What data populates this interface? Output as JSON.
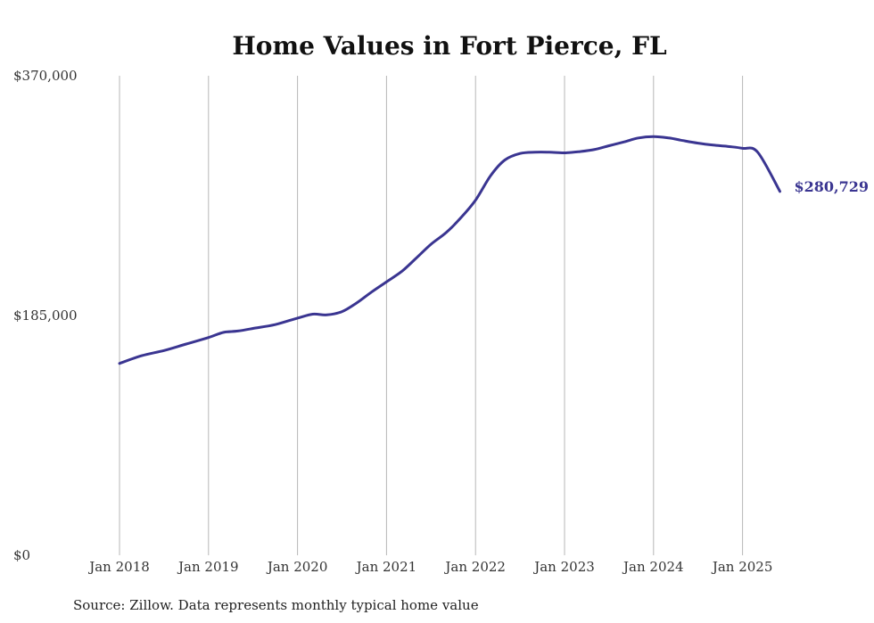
{
  "chart_data": {
    "type": "line",
    "title": "Home Values in Fort Pierce, FL",
    "xlabel": "",
    "ylabel": "",
    "ylim": [
      0,
      370000
    ],
    "y_ticks": [
      "$0",
      "$185,000",
      "$370,000"
    ],
    "y_tick_values": [
      0,
      185000,
      370000
    ],
    "x_ticks": [
      "Jan 2018",
      "Jan 2019",
      "Jan 2020",
      "Jan 2021",
      "Jan 2022",
      "Jan 2023",
      "Jan 2024",
      "Jan 2025"
    ],
    "x_tick_values": [
      2018,
      2019,
      2020,
      2021,
      2022,
      2023,
      2024,
      2025
    ],
    "xlim": [
      2018,
      2025.42
    ],
    "grid": "vertical",
    "line_color": "#3a3591",
    "end_label": "$280,729",
    "series": [
      {
        "x": [
          2018.0,
          2018.25,
          2018.5,
          2018.75,
          2019.0,
          2019.17,
          2019.33,
          2019.5,
          2019.75,
          2020.0,
          2020.17,
          2020.33,
          2020.5,
          2020.67,
          2020.83,
          2021.0,
          2021.17,
          2021.33,
          2021.5,
          2021.67,
          2021.83,
          2022.0,
          2022.17,
          2022.33,
          2022.5,
          2022.67,
          2022.83,
          2023.0,
          2023.17,
          2023.33,
          2023.5,
          2023.67,
          2023.83,
          2024.0,
          2024.17,
          2024.33,
          2024.5,
          2024.67,
          2024.83,
          2025.0,
          2025.17,
          2025.42
        ],
        "values": [
          148000,
          154000,
          158000,
          163000,
          168000,
          172000,
          173000,
          175000,
          178000,
          183000,
          186000,
          185500,
          188000,
          195000,
          203000,
          211000,
          219000,
          229000,
          240000,
          249000,
          260000,
          274000,
          293000,
          305000,
          310000,
          311000,
          311000,
          310500,
          311500,
          313000,
          316000,
          319000,
          322000,
          323000,
          322000,
          320000,
          318000,
          316500,
          315500,
          314000,
          311000,
          280729
        ]
      }
    ]
  },
  "source": "Source: Zillow. Data represents monthly typical home value"
}
